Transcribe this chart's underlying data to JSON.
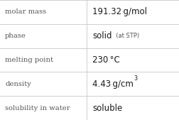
{
  "rows": [
    {
      "label": "molar mass",
      "value_parts": [
        {
          "text": "191.32 g/mol",
          "style": "normal"
        }
      ]
    },
    {
      "label": "phase",
      "value_parts": [
        {
          "text": "solid",
          "style": "normal"
        },
        {
          "text": "  (at STP)",
          "style": "small"
        }
      ]
    },
    {
      "label": "melting point",
      "value_parts": [
        {
          "text": "230 °C",
          "style": "normal"
        }
      ]
    },
    {
      "label": "density",
      "value_parts": [
        {
          "text": "4.43 g/cm",
          "style": "normal"
        },
        {
          "text": "3",
          "style": "super"
        }
      ]
    },
    {
      "label": "solubility in water",
      "value_parts": [
        {
          "text": "soluble",
          "style": "normal"
        }
      ]
    }
  ],
  "col_split": 0.485,
  "bg_color": "#ffffff",
  "grid_color": "#c8c8c8",
  "label_color": "#555555",
  "value_color": "#1a1a1a",
  "label_fontsize": 7.2,
  "value_fontsize": 8.5,
  "small_fontsize": 6.0,
  "super_fontsize": 5.8,
  "label_font": "DejaVu Serif",
  "value_font": "DejaVu Sans"
}
